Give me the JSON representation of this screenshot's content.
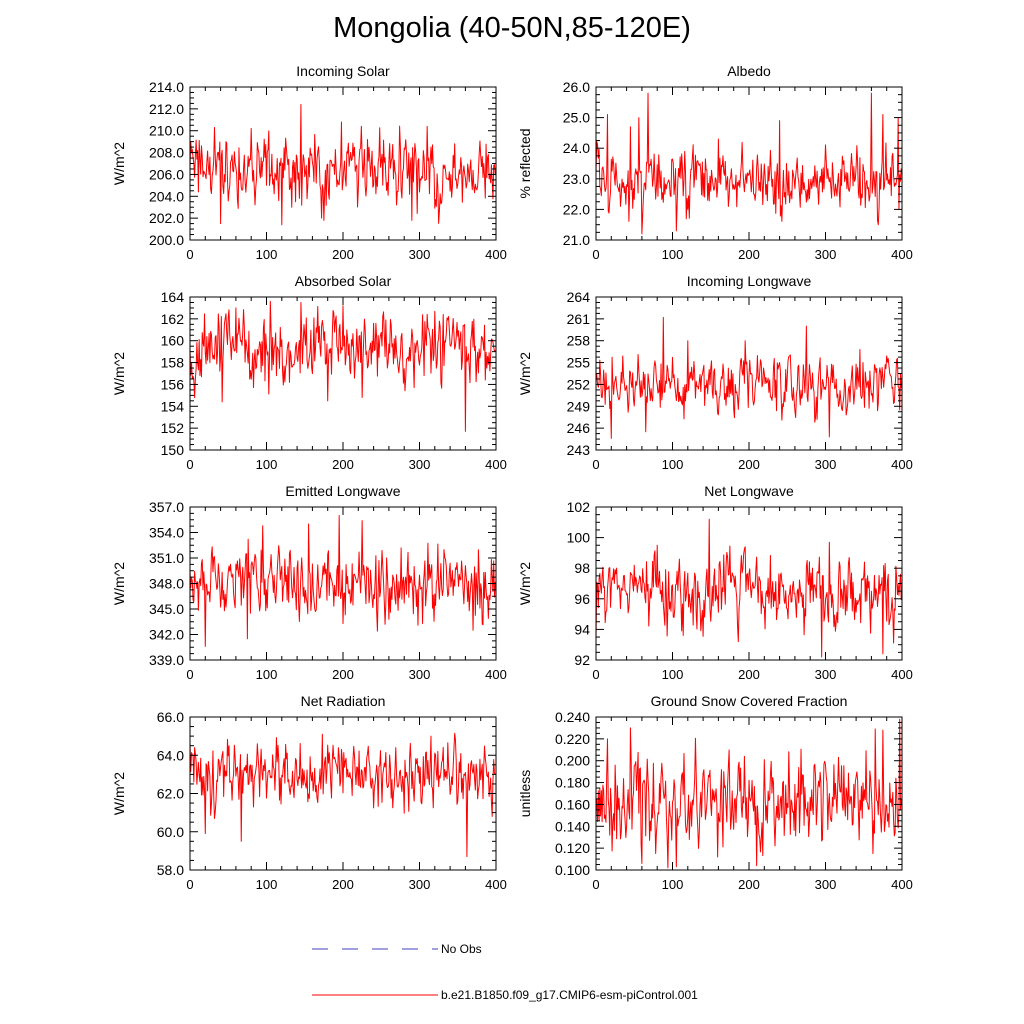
{
  "title": "Mongolia (40-50N,85-120E)",
  "colors": {
    "model": "#ff0000",
    "obs": "#4040c0",
    "axis": "#000000"
  },
  "legend": {
    "obs_label": "No Obs",
    "model_label": "b.e21.B1850.f09_g17.CMIP6-esm-piControl.001"
  },
  "chart_data": [
    {
      "type": "line",
      "title": "Incoming Solar",
      "xlabel": "",
      "ylabel": "W/m^2",
      "xlim": [
        0,
        400
      ],
      "xticks": [
        0,
        100,
        200,
        300,
        400
      ],
      "ylim": [
        200,
        214
      ],
      "yticks": [
        200,
        202,
        204,
        206,
        208,
        210,
        212,
        214
      ],
      "ydecimals": 1,
      "series": [
        {
          "name": "b.e21.B1850.f09_g17.CMIP6-esm-piControl.001",
          "n": 400,
          "mean": 206.3,
          "sd": 1.6,
          "events": [
            [
              145,
              212.4
            ],
            [
              40,
              201.5
            ],
            [
              120,
              201.4
            ],
            [
              175,
              201.8
            ],
            [
              198,
              210.8
            ],
            [
              290,
              201.8
            ],
            [
              310,
              210.4
            ],
            [
              32,
              210.3
            ]
          ]
        }
      ]
    },
    {
      "type": "line",
      "title": "Albedo",
      "xlabel": "",
      "ylabel": "% reflected",
      "xlim": [
        0,
        400
      ],
      "xticks": [
        0,
        100,
        200,
        300,
        400
      ],
      "ylim": [
        21,
        26
      ],
      "yticks": [
        21,
        22,
        23,
        24,
        25,
        26
      ],
      "ydecimals": 1,
      "series": [
        {
          "name": "b.e21.B1850.f09_g17.CMIP6-esm-piControl.001",
          "n": 400,
          "mean": 22.9,
          "sd": 0.55,
          "events": [
            [
              68,
              25.8
            ],
            [
              15,
              25.1
            ],
            [
              45,
              24.7
            ],
            [
              56,
              25.0
            ],
            [
              105,
              21.3
            ],
            [
              60,
              21.2
            ],
            [
              240,
              24.9
            ],
            [
              360,
              25.8
            ],
            [
              375,
              25.1
            ],
            [
              395,
              25.0
            ],
            [
              160,
              24.3
            ]
          ]
        }
      ]
    },
    {
      "type": "line",
      "title": "Absorbed Solar",
      "xlabel": "",
      "ylabel": "W/m^2",
      "xlim": [
        0,
        400
      ],
      "xticks": [
        0,
        100,
        200,
        300,
        400
      ],
      "ylim": [
        150,
        164
      ],
      "yticks": [
        150,
        152,
        154,
        156,
        158,
        160,
        162,
        164
      ],
      "ydecimals": 0,
      "series": [
        {
          "name": "b.e21.B1850.f09_g17.CMIP6-esm-piControl.001",
          "n": 400,
          "mean": 159.2,
          "sd": 1.6,
          "events": [
            [
              105,
              163.6
            ],
            [
              145,
              163.5
            ],
            [
              200,
              163.2
            ],
            [
              360,
              151.7
            ],
            [
              42,
              154.4
            ],
            [
              180,
              154.5
            ],
            [
              60,
              163.0
            ],
            [
              225,
              154.8
            ]
          ]
        }
      ]
    },
    {
      "type": "line",
      "title": "Incoming Longwave",
      "xlabel": "",
      "ylabel": "W/m^2",
      "xlim": [
        0,
        400
      ],
      "xticks": [
        0,
        100,
        200,
        300,
        400
      ],
      "ylim": [
        243,
        264
      ],
      "yticks": [
        243,
        246,
        249,
        252,
        255,
        258,
        261,
        264
      ],
      "ydecimals": 0,
      "series": [
        {
          "name": "b.e21.B1850.f09_g17.CMIP6-esm-piControl.001",
          "n": 400,
          "mean": 252.0,
          "sd": 1.9,
          "events": [
            [
              88,
              261.2
            ],
            [
              275,
              260.0
            ],
            [
              20,
              244.6
            ],
            [
              65,
              245.5
            ],
            [
              305,
              244.8
            ],
            [
              120,
              258.0
            ],
            [
              195,
              258.0
            ],
            [
              345,
              256.8
            ]
          ]
        }
      ]
    },
    {
      "type": "line",
      "title": "Emitted Longwave",
      "xlabel": "",
      "ylabel": "W/m^2",
      "xlim": [
        0,
        400
      ],
      "xticks": [
        0,
        100,
        200,
        300,
        400
      ],
      "ylim": [
        339,
        357
      ],
      "yticks": [
        339,
        342,
        345,
        348,
        351,
        354,
        357
      ],
      "ydecimals": 1,
      "series": [
        {
          "name": "b.e21.B1850.f09_g17.CMIP6-esm-piControl.001",
          "n": 400,
          "mean": 348.0,
          "sd": 2.1,
          "events": [
            [
              195,
              356.0
            ],
            [
              225,
              355.4
            ],
            [
              20,
              340.6
            ],
            [
              75,
              341.5
            ],
            [
              95,
              354.8
            ],
            [
              155,
              355.0
            ],
            [
              245,
              342.4
            ],
            [
              370,
              342.5
            ]
          ]
        }
      ]
    },
    {
      "type": "line",
      "title": "Net Longwave",
      "xlabel": "",
      "ylabel": "W/m^2",
      "xlim": [
        0,
        400
      ],
      "xticks": [
        0,
        100,
        200,
        300,
        400
      ],
      "ylim": [
        92,
        102
      ],
      "yticks": [
        92,
        94,
        96,
        98,
        100,
        102
      ],
      "ydecimals": 0,
      "series": [
        {
          "name": "b.e21.B1850.f09_g17.CMIP6-esm-piControl.001",
          "n": 400,
          "mean": 96.5,
          "sd": 1.1,
          "events": [
            [
              148,
              101.2
            ],
            [
              295,
              92.2
            ],
            [
              375,
              92.4
            ],
            [
              0,
              93.4
            ],
            [
              195,
              99.4
            ],
            [
              305,
              99.7
            ],
            [
              80,
              99.5
            ]
          ]
        }
      ]
    },
    {
      "type": "line",
      "title": "Net Radiation",
      "xlabel": "",
      "ylabel": "W/m^2",
      "xlim": [
        0,
        400
      ],
      "xticks": [
        0,
        100,
        200,
        300,
        400
      ],
      "ylim": [
        58,
        66
      ],
      "yticks": [
        58,
        60,
        62,
        64,
        66
      ],
      "ydecimals": 1,
      "series": [
        {
          "name": "b.e21.B1850.f09_g17.CMIP6-esm-piControl.001",
          "n": 400,
          "mean": 63.0,
          "sd": 0.85,
          "events": [
            [
              362,
              58.7
            ],
            [
              67,
              59.5
            ],
            [
              20,
              59.9
            ],
            [
              173,
              65.1
            ],
            [
              315,
              65.0
            ],
            [
              0,
              64.6
            ],
            [
              395,
              60.8
            ]
          ]
        }
      ]
    },
    {
      "type": "line",
      "title": "Ground Snow Covered Fraction",
      "xlabel": "",
      "ylabel": "unitless",
      "xlim": [
        0,
        400
      ],
      "xticks": [
        0,
        100,
        200,
        300,
        400
      ],
      "ylim": [
        0.1,
        0.24
      ],
      "yticks": [
        0.1,
        0.12,
        0.14,
        0.16,
        0.18,
        0.2,
        0.22,
        0.24
      ],
      "ydecimals": 3,
      "series": [
        {
          "name": "b.e21.B1850.f09_g17.CMIP6-esm-piControl.001",
          "n": 400,
          "mean": 0.16,
          "sd": 0.02,
          "events": [
            [
              397,
              0.238
            ],
            [
              45,
              0.23
            ],
            [
              365,
              0.229
            ],
            [
              375,
              0.228
            ],
            [
              105,
              0.103
            ],
            [
              210,
              0.104
            ],
            [
              60,
              0.106
            ],
            [
              15,
              0.22
            ]
          ]
        }
      ]
    }
  ]
}
